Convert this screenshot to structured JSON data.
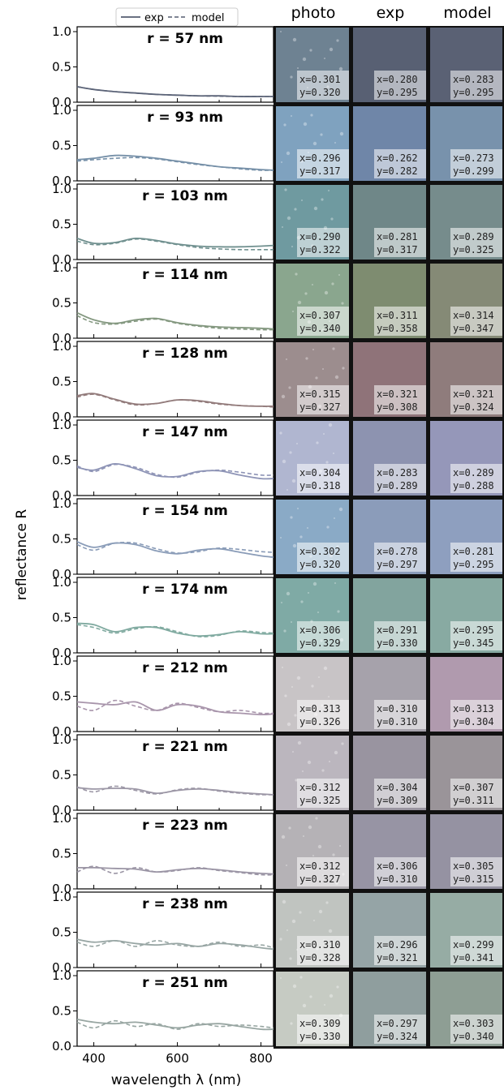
{
  "headers": {
    "photo": "photo",
    "exp": "exp",
    "model": "model"
  },
  "legend": {
    "exp": "exp",
    "model": "model"
  },
  "ylabel": "reflectance R",
  "xlabel": "wavelength λ (nm)",
  "xticks": [
    "400",
    "600",
    "800"
  ],
  "yticks": [
    "1.0",
    "0.5",
    "0.0"
  ],
  "chart_data": {
    "type": "line",
    "x_range": [
      360,
      830
    ],
    "ylim": [
      0,
      1
    ],
    "series_names": [
      "exp",
      "model"
    ],
    "panels": [
      {
        "label": "r = 57 nm",
        "radius_nm": 57,
        "color": "#505870",
        "exp_color": "#5c6478",
        "model_color": "#5c6478",
        "photo": "#6e8292",
        "exp_patch": "#586073",
        "model_patch": "#5a6174",
        "photo_xy": [
          "x=0.301",
          "y=0.320"
        ],
        "exp_xy": [
          "x=0.280",
          "y=0.295"
        ],
        "model_xy": [
          "x=0.283",
          "y=0.295"
        ],
        "x": [
          360,
          400,
          450,
          500,
          550,
          600,
          650,
          700,
          750,
          800,
          830
        ],
        "exp": [
          0.22,
          0.18,
          0.15,
          0.13,
          0.11,
          0.1,
          0.09,
          0.09,
          0.08,
          0.08,
          0.08
        ],
        "model": [
          0.22,
          0.18,
          0.15,
          0.13,
          0.11,
          0.1,
          0.09,
          0.085,
          0.08,
          0.08,
          0.08
        ]
      },
      {
        "label": "r = 93 nm",
        "radius_nm": 93,
        "color": "#6f8ba8",
        "exp_color": "#7690a8",
        "model_color": "#7690a8",
        "photo": "#7fa2bf",
        "exp_patch": "#6f86a8",
        "model_patch": "#7892ac",
        "photo_xy": [
          "x=0.296",
          "y=0.317"
        ],
        "exp_xy": [
          "x=0.262",
          "y=0.282"
        ],
        "model_xy": [
          "x=0.273",
          "y=0.299"
        ],
        "x": [
          360,
          400,
          450,
          500,
          550,
          600,
          650,
          700,
          750,
          800,
          830
        ],
        "exp": [
          0.3,
          0.32,
          0.36,
          0.35,
          0.32,
          0.28,
          0.24,
          0.2,
          0.18,
          0.16,
          0.15
        ],
        "model": [
          0.28,
          0.3,
          0.32,
          0.33,
          0.31,
          0.27,
          0.23,
          0.2,
          0.17,
          0.15,
          0.15
        ]
      },
      {
        "label": "r = 103 nm",
        "radius_nm": 103,
        "color": "#708c8f",
        "exp_color": "#70908f",
        "model_color": "#70908f",
        "photo": "#6f9aa0",
        "exp_patch": "#6f8788",
        "model_patch": "#768c8c",
        "photo_xy": [
          "x=0.290",
          "y=0.322"
        ],
        "exp_xy": [
          "x=0.281",
          "y=0.317"
        ],
        "model_xy": [
          "x=0.289",
          "y=0.325"
        ],
        "x": [
          360,
          400,
          450,
          500,
          550,
          600,
          650,
          700,
          750,
          800,
          830
        ],
        "exp": [
          0.3,
          0.23,
          0.24,
          0.3,
          0.27,
          0.22,
          0.19,
          0.18,
          0.18,
          0.19,
          0.2
        ],
        "model": [
          0.26,
          0.21,
          0.23,
          0.29,
          0.26,
          0.21,
          0.17,
          0.15,
          0.14,
          0.14,
          0.14
        ]
      },
      {
        "label": "r = 114 nm",
        "radius_nm": 114,
        "color": "#7f9478",
        "exp_color": "#849880",
        "model_color": "#849880",
        "photo": "#8aa68e",
        "exp_patch": "#7e8c70",
        "model_patch": "#858a76",
        "photo_xy": [
          "x=0.307",
          "y=0.340"
        ],
        "exp_xy": [
          "x=0.311",
          "y=0.358"
        ],
        "model_xy": [
          "x=0.314",
          "y=0.347"
        ],
        "x": [
          360,
          400,
          450,
          500,
          550,
          600,
          650,
          700,
          750,
          800,
          830
        ],
        "exp": [
          0.36,
          0.26,
          0.21,
          0.26,
          0.28,
          0.22,
          0.18,
          0.16,
          0.15,
          0.14,
          0.13
        ],
        "model": [
          0.32,
          0.22,
          0.2,
          0.24,
          0.27,
          0.21,
          0.17,
          0.14,
          0.13,
          0.12,
          0.12
        ]
      },
      {
        "label": "r = 128 nm",
        "radius_nm": 128,
        "color": "#8e7679",
        "exp_color": "#927b7b",
        "model_color": "#927b7b",
        "photo": "#9c8d8e",
        "exp_patch": "#8f7379",
        "model_patch": "#8f7c7c",
        "photo_xy": [
          "x=0.315",
          "y=0.327"
        ],
        "exp_xy": [
          "x=0.321",
          "y=0.308"
        ],
        "model_xy": [
          "x=0.321",
          "y=0.324"
        ],
        "x": [
          360,
          400,
          450,
          500,
          550,
          600,
          650,
          700,
          750,
          800,
          830
        ],
        "exp": [
          0.3,
          0.33,
          0.25,
          0.18,
          0.19,
          0.24,
          0.23,
          0.19,
          0.16,
          0.15,
          0.15
        ],
        "model": [
          0.28,
          0.32,
          0.24,
          0.17,
          0.19,
          0.24,
          0.22,
          0.18,
          0.16,
          0.15,
          0.14
        ]
      },
      {
        "label": "r = 147 nm",
        "radius_nm": 147,
        "color": "#8e8fb5",
        "exp_color": "#8e94b6",
        "model_color": "#8e94b6",
        "photo": "#b0b6d0",
        "exp_patch": "#8d93b0",
        "model_patch": "#9597b9",
        "photo_xy": [
          "x=0.304",
          "y=0.318"
        ],
        "exp_xy": [
          "x=0.283",
          "y=0.289"
        ],
        "model_xy": [
          "x=0.289",
          "y=0.288"
        ],
        "x": [
          360,
          400,
          450,
          500,
          550,
          600,
          650,
          700,
          750,
          800,
          830
        ],
        "exp": [
          0.4,
          0.36,
          0.45,
          0.38,
          0.28,
          0.27,
          0.34,
          0.35,
          0.29,
          0.24,
          0.24
        ],
        "model": [
          0.42,
          0.34,
          0.44,
          0.4,
          0.3,
          0.26,
          0.33,
          0.36,
          0.33,
          0.29,
          0.29
        ]
      },
      {
        "label": "r = 154 nm",
        "radius_nm": 154,
        "color": "#8a9ab8",
        "exp_color": "#8a9cb8",
        "model_color": "#8a9cb8",
        "photo": "#8aaac6",
        "exp_patch": "#8b9cba",
        "model_patch": "#8e9fbf",
        "photo_xy": [
          "x=0.302",
          "y=0.320"
        ],
        "exp_xy": [
          "x=0.278",
          "y=0.297"
        ],
        "model_xy": [
          "x=0.281",
          "y=0.295"
        ],
        "x": [
          360,
          400,
          450,
          500,
          550,
          600,
          650,
          700,
          750,
          800,
          830
        ],
        "exp": [
          0.46,
          0.38,
          0.44,
          0.42,
          0.33,
          0.29,
          0.34,
          0.36,
          0.31,
          0.26,
          0.24
        ],
        "model": [
          0.42,
          0.34,
          0.44,
          0.44,
          0.36,
          0.3,
          0.32,
          0.37,
          0.35,
          0.32,
          0.31
        ]
      },
      {
        "label": "r = 174 nm",
        "radius_nm": 174,
        "color": "#7fa79c",
        "exp_color": "#80aaa0",
        "model_color": "#80aaa0",
        "photo": "#7faaa5",
        "exp_patch": "#82a49e",
        "model_patch": "#88aaa2",
        "photo_xy": [
          "x=0.306",
          "y=0.329"
        ],
        "exp_xy": [
          "x=0.291",
          "y=0.330"
        ],
        "model_xy": [
          "x=0.295",
          "y=0.345"
        ],
        "x": [
          360,
          400,
          450,
          500,
          550,
          600,
          650,
          700,
          750,
          800,
          830
        ],
        "exp": [
          0.42,
          0.4,
          0.3,
          0.36,
          0.36,
          0.28,
          0.24,
          0.26,
          0.3,
          0.27,
          0.27
        ],
        "model": [
          0.4,
          0.36,
          0.28,
          0.34,
          0.37,
          0.3,
          0.23,
          0.25,
          0.31,
          0.29,
          0.28
        ]
      },
      {
        "label": "r = 212 nm",
        "radius_nm": 212,
        "color": "#a593ab",
        "exp_color": "#a895ab",
        "model_color": "#a895ab",
        "photo": "#c8c4c6",
        "exp_patch": "#a6a2ab",
        "model_patch": "#b09aae",
        "photo_xy": [
          "x=0.313",
          "y=0.326"
        ],
        "exp_xy": [
          "x=0.310",
          "y=0.310"
        ],
        "model_xy": [
          "x=0.313",
          "y=0.304"
        ],
        "x": [
          360,
          400,
          450,
          500,
          550,
          600,
          650,
          700,
          750,
          800,
          830
        ],
        "exp": [
          0.42,
          0.4,
          0.38,
          0.42,
          0.3,
          0.38,
          0.36,
          0.28,
          0.26,
          0.24,
          0.25
        ],
        "model": [
          0.36,
          0.3,
          0.44,
          0.36,
          0.3,
          0.4,
          0.34,
          0.28,
          0.3,
          0.26,
          0.26
        ]
      },
      {
        "label": "r = 221 nm",
        "radius_nm": 221,
        "color": "#9c95a2",
        "exp_color": "#9c97a6",
        "model_color": "#9c97a6",
        "photo": "#bbb6be",
        "exp_patch": "#9994a0",
        "model_patch": "#9a9499",
        "photo_xy": [
          "x=0.312",
          "y=0.325"
        ],
        "exp_xy": [
          "x=0.304",
          "y=0.309"
        ],
        "model_xy": [
          "x=0.307",
          "y=0.311"
        ],
        "x": [
          360,
          400,
          450,
          500,
          550,
          600,
          650,
          700,
          750,
          800,
          830
        ],
        "exp": [
          0.32,
          0.3,
          0.31,
          0.3,
          0.24,
          0.28,
          0.3,
          0.28,
          0.25,
          0.23,
          0.22
        ],
        "model": [
          0.33,
          0.26,
          0.34,
          0.28,
          0.23,
          0.29,
          0.31,
          0.27,
          0.24,
          0.22,
          0.22
        ]
      },
      {
        "label": "r = 223 nm",
        "radius_nm": 223,
        "color": "#9a95a2",
        "exp_color": "#9b95a5",
        "model_color": "#9b95a5",
        "photo": "#b5b2b6",
        "exp_patch": "#9794a4",
        "model_patch": "#9592a2",
        "photo_xy": [
          "x=0.312",
          "y=0.327"
        ],
        "exp_xy": [
          "x=0.306",
          "y=0.310"
        ],
        "model_xy": [
          "x=0.305",
          "y=0.315"
        ],
        "x": [
          360,
          400,
          450,
          500,
          550,
          600,
          650,
          700,
          750,
          800,
          830
        ],
        "exp": [
          0.3,
          0.3,
          0.29,
          0.28,
          0.24,
          0.27,
          0.29,
          0.27,
          0.24,
          0.22,
          0.21
        ],
        "model": [
          0.24,
          0.32,
          0.22,
          0.3,
          0.24,
          0.26,
          0.3,
          0.26,
          0.23,
          0.2,
          0.2
        ]
      },
      {
        "label": "r = 238 nm",
        "radius_nm": 238,
        "color": "#98a4a2",
        "exp_color": "#98a6a4",
        "model_color": "#98a6a4",
        "photo": "#c0c4c0",
        "exp_patch": "#95a4a6",
        "model_patch": "#96aca4",
        "photo_xy": [
          "x=0.310",
          "y=0.328"
        ],
        "exp_xy": [
          "x=0.296",
          "y=0.321"
        ],
        "model_xy": [
          "x=0.299",
          "y=0.341"
        ],
        "x": [
          360,
          400,
          450,
          500,
          550,
          600,
          650,
          700,
          750,
          800,
          830
        ],
        "exp": [
          0.4,
          0.36,
          0.38,
          0.34,
          0.32,
          0.34,
          0.3,
          0.34,
          0.32,
          0.28,
          0.26
        ],
        "model": [
          0.36,
          0.3,
          0.38,
          0.3,
          0.38,
          0.32,
          0.3,
          0.36,
          0.3,
          0.32,
          0.28
        ]
      },
      {
        "label": "r = 251 nm",
        "radius_nm": 251,
        "color": "#98a4a0",
        "exp_color": "#98a6a2",
        "model_color": "#98a6a2",
        "photo": "#c6cbc3",
        "exp_patch": "#8f9e9e",
        "model_patch": "#8e9e94",
        "photo_xy": [
          "x=0.309",
          "y=0.330"
        ],
        "exp_xy": [
          "x=0.297",
          "y=0.324"
        ],
        "model_xy": [
          "x=0.303",
          "y=0.340"
        ],
        "x": [
          360,
          400,
          450,
          500,
          550,
          600,
          650,
          700,
          750,
          800,
          830
        ],
        "exp": [
          0.38,
          0.34,
          0.32,
          0.34,
          0.3,
          0.26,
          0.3,
          0.32,
          0.28,
          0.24,
          0.24
        ],
        "model": [
          0.34,
          0.26,
          0.36,
          0.28,
          0.32,
          0.24,
          0.32,
          0.28,
          0.3,
          0.28,
          0.26
        ]
      }
    ]
  }
}
